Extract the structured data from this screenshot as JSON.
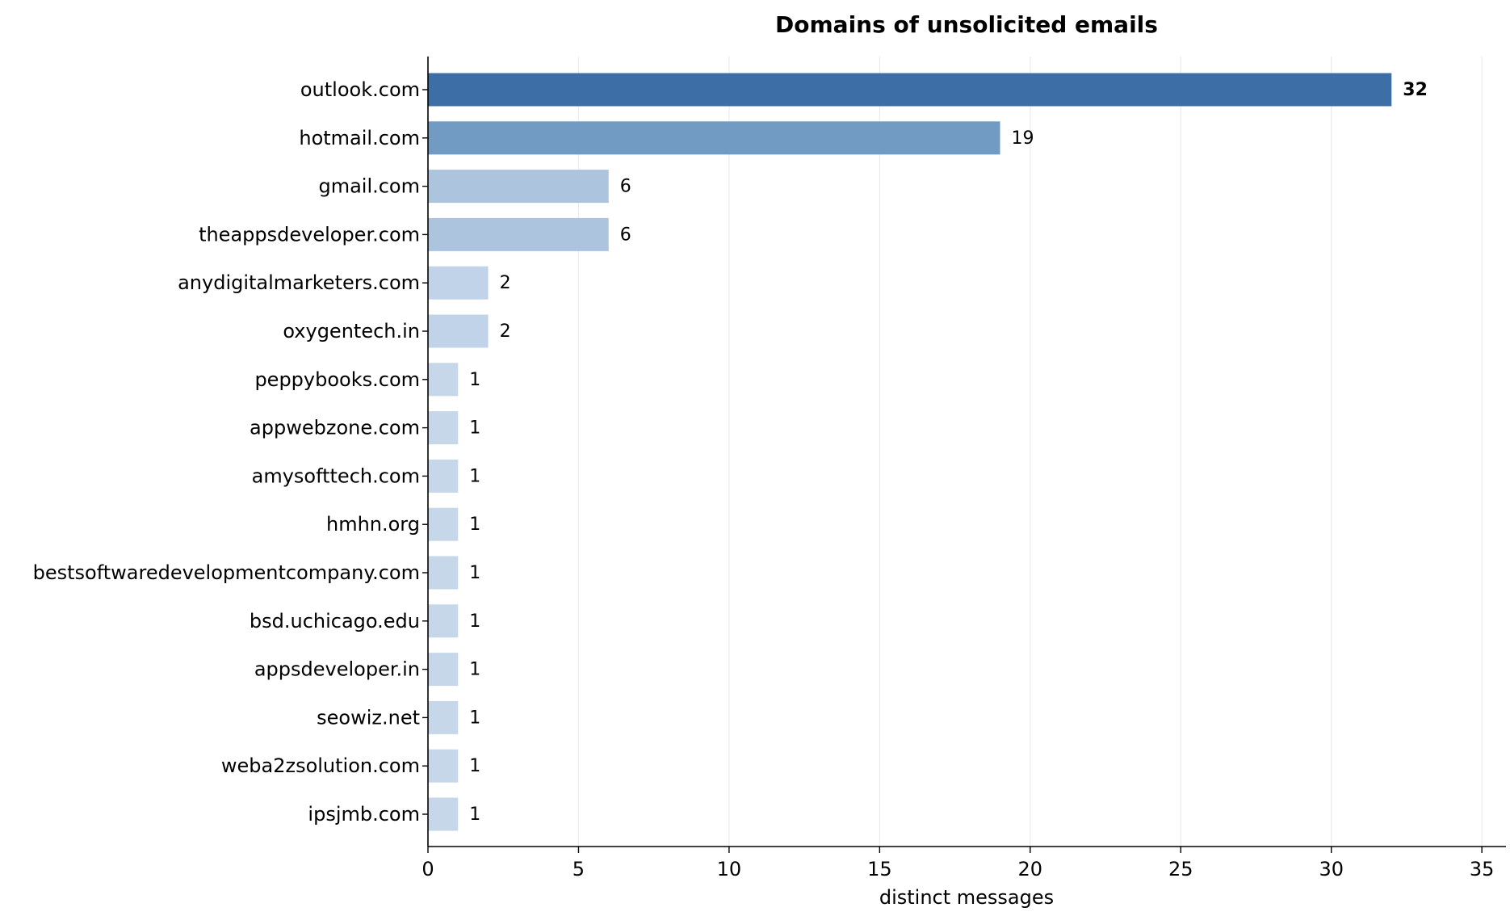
{
  "chart_data": {
    "type": "bar",
    "orientation": "horizontal",
    "title": "Domains of unsolicited emails",
    "xlabel": "distinct messages",
    "ylabel": "",
    "xlim": [
      0,
      35.8
    ],
    "xticks": [
      0,
      5,
      10,
      15,
      20,
      25,
      30,
      35
    ],
    "grid": "vertical",
    "legend": "none",
    "categories": [
      "outlook.com",
      "hotmail.com",
      "gmail.com",
      "theappsdeveloper.com",
      "anydigitalmarketers.com",
      "oxygentech.in",
      "peppybooks.com",
      "appwebzone.com",
      "amysofttech.com",
      "hmhn.org",
      "bestsoftwaredevelopmentcompany.com",
      "bsd.uchicago.edu",
      "appsdeveloper.in",
      "seowiz.net",
      "weba2zsolution.com",
      "ipsjmb.com"
    ],
    "values": [
      32,
      19,
      6,
      6,
      2,
      2,
      1,
      1,
      1,
      1,
      1,
      1,
      1,
      1,
      1,
      1
    ],
    "bar_colors": [
      "#3d6fa6",
      "#729bc4",
      "#adc4df",
      "#adc4df",
      "#c0d3e8",
      "#c0d3e8",
      "#c6d7e9",
      "#c6d7e9",
      "#c6d7e9",
      "#c6d7e9",
      "#c6d7e9",
      "#c6d7e9",
      "#c6d7e9",
      "#c6d7e9",
      "#c6d7e9",
      "#c6d7e9"
    ],
    "highlight_max_label": true
  }
}
